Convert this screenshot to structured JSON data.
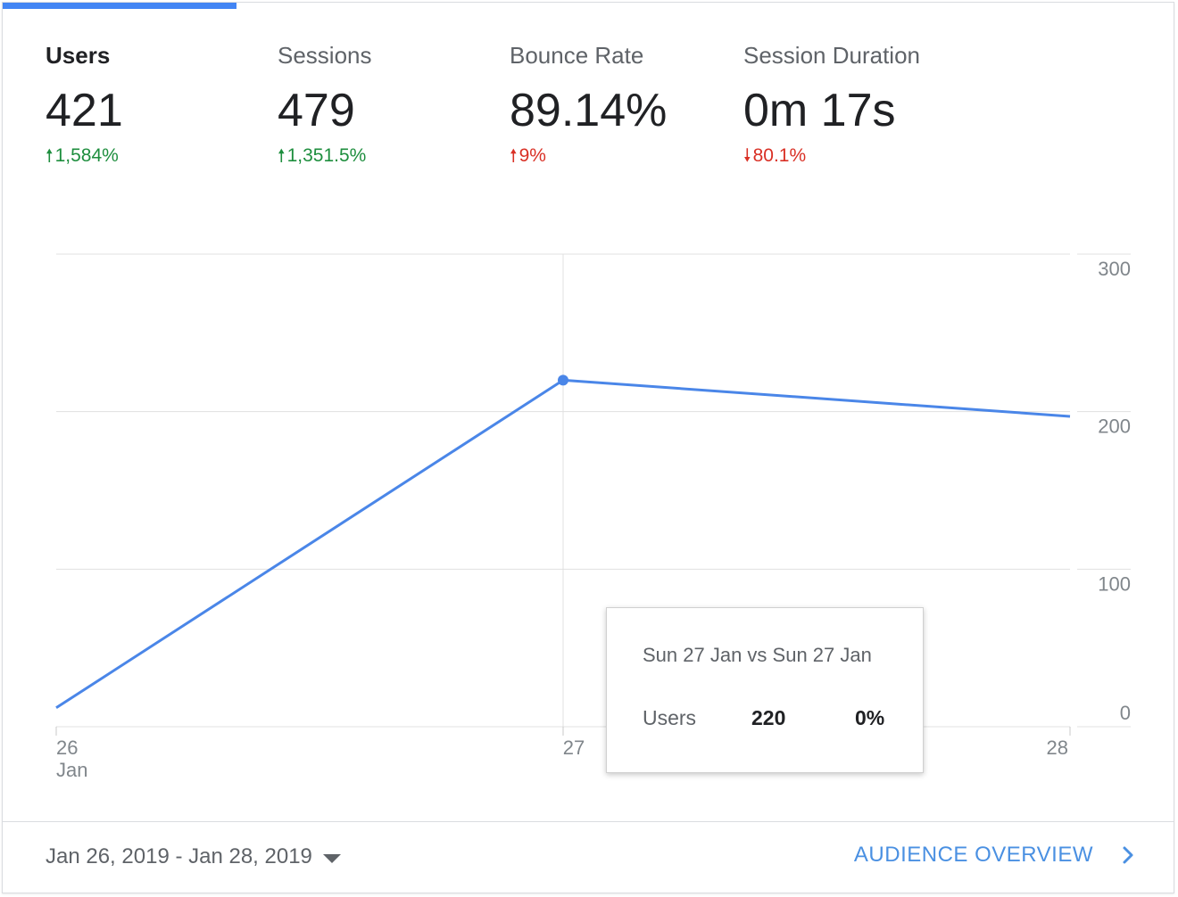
{
  "metrics": [
    {
      "label": "Users",
      "value": "421",
      "change": "1,584%",
      "direction": "up",
      "color": "#1e8e3e",
      "active": true
    },
    {
      "label": "Sessions",
      "value": "479",
      "change": "1,351.5%",
      "direction": "up",
      "color": "#1e8e3e",
      "active": false
    },
    {
      "label": "Bounce Rate",
      "value": "89.14%",
      "change": "9%",
      "direction": "up",
      "color": "#d93025",
      "active": false
    },
    {
      "label": "Session Duration",
      "value": "0m 17s",
      "change": "80.1%",
      "direction": "down",
      "color": "#d93025",
      "active": false
    }
  ],
  "icons": {
    "up": "arrow-up-icon",
    "down": "arrow-down-icon",
    "dropdown": "caret-down-icon",
    "link": "chevron-right-icon"
  },
  "chart_data": {
    "type": "line",
    "x": [
      "26",
      "27",
      "28"
    ],
    "x_sublabels": [
      "Jan",
      "",
      ""
    ],
    "series": [
      {
        "values": [
          12,
          220,
          197
        ],
        "color": "#4a86e8"
      }
    ],
    "ylim": [
      0,
      300
    ],
    "yticks": [
      0,
      100,
      200,
      300
    ],
    "ytick_labels": [
      "0",
      "100",
      "200",
      "300"
    ],
    "grid": true,
    "highlight_index": 1
  },
  "tooltip": {
    "title": "Sun 27 Jan vs Sun 27 Jan",
    "metric": "Users",
    "value": "220",
    "change": "0%"
  },
  "footer": {
    "date_range": "Jan 26, 2019 - Jan 28, 2019",
    "link_label": "AUDIENCE OVERVIEW",
    "link_color": "#4a90e2"
  },
  "colors": {
    "accent": "#4285f4",
    "positive": "#1e8e3e",
    "negative": "#d93025"
  }
}
